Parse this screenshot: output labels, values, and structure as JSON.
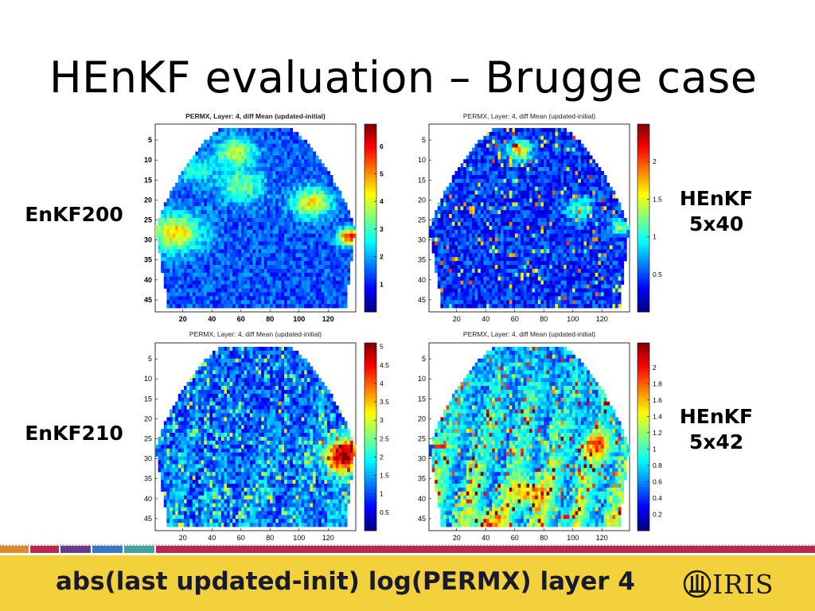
{
  "slide": {
    "title": "HEnKF evaluation – Brugge case",
    "footer": "abs(last updated-init) log(PERMX) layer 4",
    "logo_text": "IRIS"
  },
  "row_labels": {
    "enkf200": "EnKF200",
    "enkf210": "EnKF210",
    "henkf_5x40_line1": "HEnKF",
    "henkf_5x40_line2": "5x40",
    "henkf_5x42_line1": "HEnKF",
    "henkf_5x42_line2": "5x42"
  },
  "colors": {
    "footer_band": "#f2d13c",
    "deco_segments": [
      "#d98b2b",
      "#b8284f",
      "#6b3a8c",
      "#3a76c4",
      "#44a39a",
      "#b8284f"
    ]
  },
  "chart_data": [
    {
      "type": "heatmap",
      "id": "enkf200",
      "title": "PERMX, Layer: 4, diff Mean (updated-initial)",
      "x_ticks": [
        20,
        40,
        60,
        80,
        100,
        120
      ],
      "y_ticks": [
        5,
        10,
        15,
        20,
        25,
        30,
        35,
        40,
        45
      ],
      "xlim": [
        1,
        139
      ],
      "ylim": [
        1,
        48
      ],
      "colorbar_ticks": [
        1,
        2,
        3,
        4,
        5,
        6
      ],
      "colorbar_range": [
        0,
        6.8
      ],
      "colormap": "jet",
      "style": "enkf200",
      "seed": 11
    },
    {
      "type": "heatmap",
      "id": "henkf_5x40",
      "title": "PERMX, Layer: 4, diff Mean (updated-initial)",
      "x_ticks": [
        20,
        40,
        60,
        80,
        100,
        120
      ],
      "y_ticks": [
        5,
        10,
        15,
        20,
        25,
        30,
        35,
        40,
        45
      ],
      "xlim": [
        1,
        139
      ],
      "ylim": [
        1,
        48
      ],
      "colorbar_ticks": [
        0.5,
        1,
        1.5,
        2
      ],
      "colorbar_range": [
        0,
        2.5
      ],
      "colormap": "jet",
      "style": "henkf40",
      "seed": 23
    },
    {
      "type": "heatmap",
      "id": "enkf210",
      "title": "PERMX, Layer: 4, diff Mean (updated-initial)",
      "x_ticks": [
        20,
        40,
        60,
        80,
        100,
        120
      ],
      "y_ticks": [
        5,
        10,
        15,
        20,
        25,
        30,
        35,
        40,
        45
      ],
      "xlim": [
        1,
        139
      ],
      "ylim": [
        1,
        48
      ],
      "colorbar_ticks": [
        0.5,
        1,
        1.5,
        2,
        2.5,
        3,
        3.5,
        4,
        4.5,
        5
      ],
      "colorbar_range": [
        0,
        5.1
      ],
      "colormap": "jet",
      "style": "enkf210",
      "seed": 37
    },
    {
      "type": "heatmap",
      "id": "henkf_5x42",
      "title": "PERMX, Layer: 4, diff Mean (updated-initial)",
      "x_ticks": [
        20,
        40,
        60,
        80,
        100,
        120
      ],
      "y_ticks": [
        5,
        10,
        15,
        20,
        25,
        30,
        35,
        40,
        45
      ],
      "xlim": [
        1,
        139
      ],
      "ylim": [
        1,
        48
      ],
      "colorbar_ticks": [
        0.2,
        0.4,
        0.6,
        0.8,
        1,
        1.2,
        1.4,
        1.6,
        1.8,
        2
      ],
      "colorbar_range": [
        0,
        2.3
      ],
      "colormap": "jet",
      "style": "henkf42",
      "seed": 53
    }
  ]
}
